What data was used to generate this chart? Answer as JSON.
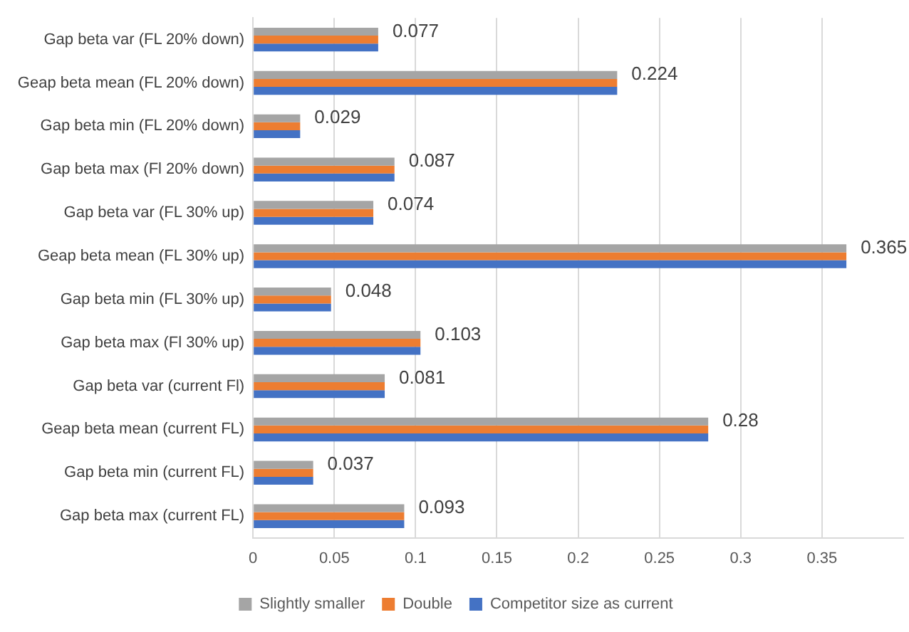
{
  "chart_data": {
    "type": "bar",
    "orientation": "horizontal",
    "categories": [
      "Gap beta var (FL 20% down)",
      "Geap beta mean (FL 20% down)",
      "Gap beta min (FL 20% down)",
      "Gap beta max (Fl 20% down)",
      "Gap beta var (FL 30% up)",
      "Geap beta mean (FL 30% up)",
      "Gap beta min (FL 30% up)",
      "Gap beta max (Fl 30% up)",
      "Gap beta var (current Fl)",
      "Geap beta mean (current FL)",
      "Gap beta min (current FL)",
      "Gap beta max (current FL)"
    ],
    "series": [
      {
        "name": "Slightly smaller",
        "color": "#a5a5a5",
        "values": [
          0.077,
          0.224,
          0.029,
          0.087,
          0.074,
          0.365,
          0.048,
          0.103,
          0.081,
          0.28,
          0.037,
          0.093
        ],
        "value_labels": [
          "0.077",
          "0.224",
          "0.029",
          "0.087",
          "0.074",
          "0.365",
          "0.048",
          "0.103",
          "0.081",
          "0.28",
          "0.037",
          "0.093"
        ]
      },
      {
        "name": "Double",
        "color": "#ed7d31",
        "values": [
          0.077,
          0.224,
          0.029,
          0.087,
          0.074,
          0.365,
          0.048,
          0.103,
          0.081,
          0.28,
          0.037,
          0.093
        ]
      },
      {
        "name": "Competitor size as current",
        "color": "#4472c4",
        "values": [
          0.077,
          0.224,
          0.029,
          0.087,
          0.074,
          0.365,
          0.048,
          0.103,
          0.081,
          0.28,
          0.037,
          0.093
        ]
      }
    ],
    "xlim": [
      0,
      0.4
    ],
    "xticks": [
      0,
      0.05,
      0.1,
      0.15,
      0.2,
      0.25,
      0.3,
      0.35
    ],
    "grid": "x",
    "legend": "bottom"
  }
}
